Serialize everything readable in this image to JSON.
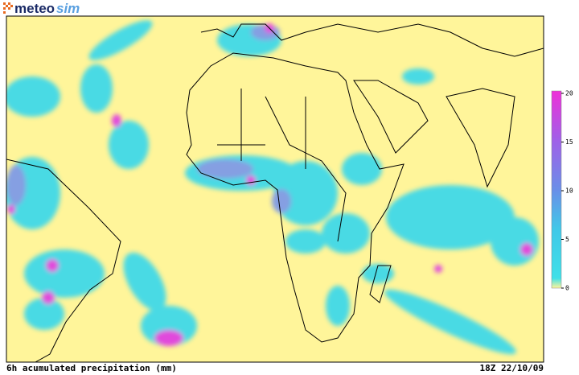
{
  "logo": {
    "brand": "meteo",
    "suffix": "sim"
  },
  "footer": {
    "product": "6h acumulated precipitation (mm)",
    "timestamp": "18Z 22/10/09"
  },
  "legend": {
    "range": [
      0,
      20
    ],
    "ticks": [
      0,
      5,
      10,
      15,
      20
    ]
  }
}
